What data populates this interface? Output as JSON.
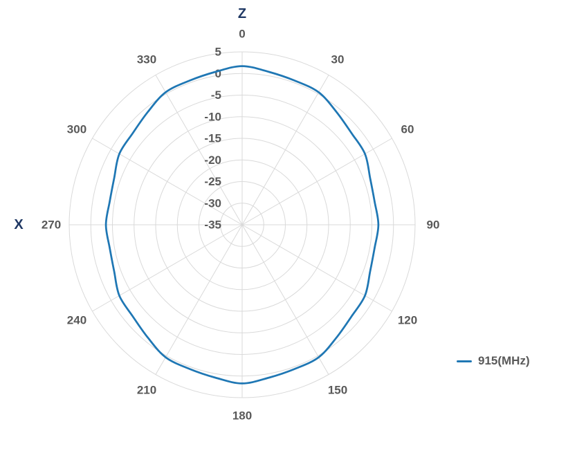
{
  "chart_data": {
    "type": "line",
    "subtype": "polar",
    "title": "",
    "angular_axis": {
      "ticks_deg": [
        0,
        30,
        60,
        90,
        120,
        150,
        180,
        210,
        240,
        270,
        300,
        330
      ],
      "direction": "clockwise",
      "zero_position": "top"
    },
    "radial_axis": {
      "ticks_db": [
        5,
        0,
        -5,
        -10,
        -15,
        -20,
        -25,
        -30,
        -35
      ],
      "min": -35,
      "max": 5,
      "major_unit": 5
    },
    "axis_labels": {
      "top": "Z",
      "left": "X"
    },
    "series": [
      {
        "name": "915(MHz)",
        "color": "#1F77B4",
        "angles_deg": [
          0,
          10,
          20,
          30,
          40,
          50,
          60,
          70,
          80,
          90,
          100,
          110,
          120,
          130,
          140,
          150,
          160,
          170,
          180,
          190,
          200,
          210,
          220,
          230,
          240,
          250,
          260,
          270,
          280,
          290,
          300,
          310,
          320,
          330,
          340,
          350
        ],
        "values_db": [
          1.7,
          0.9,
          0.5,
          0.4,
          -1.0,
          -2.0,
          -2.2,
          -3.5,
          -3.9,
          -3.5,
          -3.9,
          -3.5,
          -2.2,
          -2.0,
          -1.0,
          0.4,
          0.5,
          0.9,
          1.7,
          0.9,
          0.5,
          0.4,
          -1.0,
          -2.0,
          -2.2,
          -3.5,
          -3.9,
          -3.5,
          -3.9,
          -3.5,
          -2.2,
          -2.0,
          -1.0,
          0.4,
          0.5,
          0.9
        ]
      }
    ],
    "legend": {
      "label": "915(MHz)",
      "position": "right"
    }
  },
  "colors": {
    "grid": "#D9D9D9",
    "tick_label": "#595959",
    "axis_label": "#1F3864",
    "background": "#FFFFFF"
  }
}
